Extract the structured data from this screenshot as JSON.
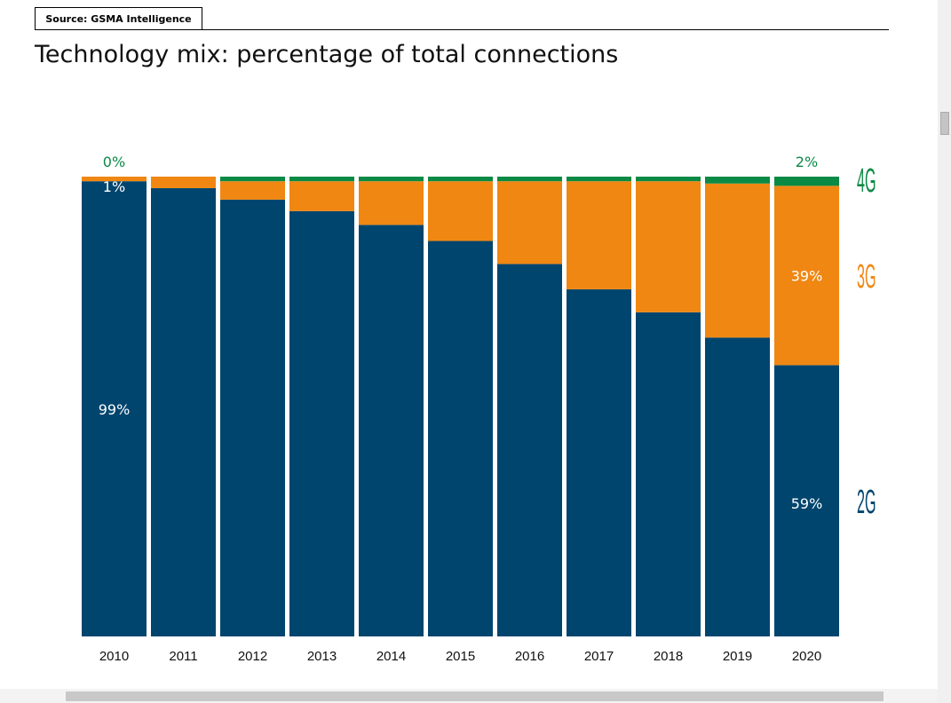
{
  "source": "Source: GSMA Intelligence",
  "title": "Technology mix: percentage of total connections",
  "colors": {
    "2G": "#00456e",
    "3G": "#f08712",
    "4G": "#0a8a45",
    "label_white": "#ffffff"
  },
  "chart_data": {
    "type": "bar",
    "stacked": true,
    "title": "Technology mix: percentage of total connections",
    "categories": [
      "2010",
      "2011",
      "2012",
      "2013",
      "2014",
      "2015",
      "2016",
      "2017",
      "2018",
      "2019",
      "2020"
    ],
    "ylim": [
      0,
      100
    ],
    "series": [
      {
        "name": "2G",
        "values": [
          99,
          97.5,
          95,
          92.5,
          89.5,
          86,
          81,
          75.5,
          70.5,
          65,
          59
        ]
      },
      {
        "name": "3G",
        "values": [
          1,
          2.5,
          4,
          6.5,
          9.5,
          13,
          18,
          23.5,
          28.5,
          33.5,
          39
        ]
      },
      {
        "name": "4G",
        "values": [
          0,
          0,
          1,
          1,
          1,
          1,
          1,
          1,
          1,
          1.5,
          2
        ]
      }
    ],
    "data_labels": [
      {
        "year": "2010",
        "series": "4G",
        "text": "0%"
      },
      {
        "year": "2010",
        "series": "3G",
        "text": "1%"
      },
      {
        "year": "2010",
        "series": "2G",
        "text": "99%"
      },
      {
        "year": "2020",
        "series": "4G",
        "text": "2%"
      },
      {
        "year": "2020",
        "series": "3G",
        "text": "39%"
      },
      {
        "year": "2020",
        "series": "2G",
        "text": "59%"
      }
    ],
    "legend": [
      "4G",
      "3G",
      "2G"
    ],
    "legend_position": "right"
  }
}
